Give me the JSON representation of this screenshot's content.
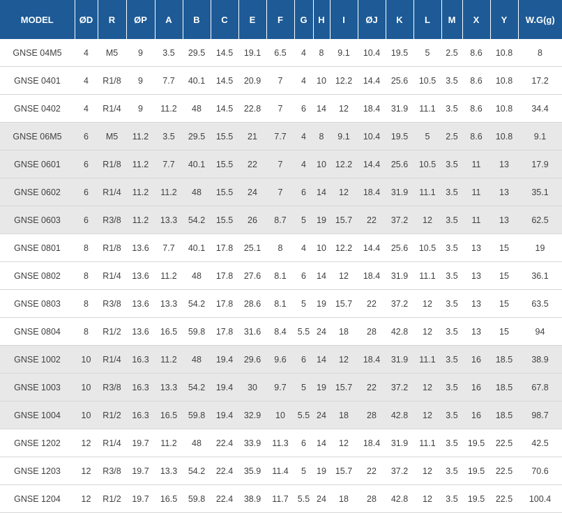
{
  "columns": [
    "MODEL",
    "ØD",
    "R",
    "ØP",
    "A",
    "B",
    "C",
    "E",
    "F",
    "G",
    "H",
    "I",
    "ØJ",
    "K",
    "L",
    "M",
    "X",
    "Y",
    "W.G(g)"
  ],
  "rows": [
    [
      "GNSE 04M5",
      "4",
      "M5",
      "9",
      "3.5",
      "29.5",
      "14.5",
      "19.1",
      "6.5",
      "4",
      "8",
      "9.1",
      "10.4",
      "19.5",
      "5",
      "2.5",
      "8.6",
      "10.8",
      "8"
    ],
    [
      "GNSE 0401",
      "4",
      "R1/8",
      "9",
      "7.7",
      "40.1",
      "14.5",
      "20.9",
      "7",
      "4",
      "10",
      "12.2",
      "14.4",
      "25.6",
      "10.5",
      "3.5",
      "8.6",
      "10.8",
      "17.2"
    ],
    [
      "GNSE 0402",
      "4",
      "R1/4",
      "9",
      "11.2",
      "48",
      "14.5",
      "22.8",
      "7",
      "6",
      "14",
      "12",
      "18.4",
      "31.9",
      "11.1",
      "3.5",
      "8.6",
      "10.8",
      "34.4"
    ],
    [
      "GNSE 06M5",
      "6",
      "M5",
      "11.2",
      "3.5",
      "29.5",
      "15.5",
      "21",
      "7.7",
      "4",
      "8",
      "9.1",
      "10.4",
      "19.5",
      "5",
      "2.5",
      "8.6",
      "10.8",
      "9.1"
    ],
    [
      "GNSE 0601",
      "6",
      "R1/8",
      "11.2",
      "7.7",
      "40.1",
      "15.5",
      "22",
      "7",
      "4",
      "10",
      "12.2",
      "14.4",
      "25.6",
      "10.5",
      "3.5",
      "11",
      "13",
      "17.9"
    ],
    [
      "GNSE 0602",
      "6",
      "R1/4",
      "11.2",
      "11.2",
      "48",
      "15.5",
      "24",
      "7",
      "6",
      "14",
      "12",
      "18.4",
      "31.9",
      "11.1",
      "3.5",
      "11",
      "13",
      "35.1"
    ],
    [
      "GNSE 0603",
      "6",
      "R3/8",
      "11.2",
      "13.3",
      "54.2",
      "15.5",
      "26",
      "8.7",
      "5",
      "19",
      "15.7",
      "22",
      "37.2",
      "12",
      "3.5",
      "11",
      "13",
      "62.5"
    ],
    [
      "GNSE 0801",
      "8",
      "R1/8",
      "13.6",
      "7.7",
      "40.1",
      "17.8",
      "25.1",
      "8",
      "4",
      "10",
      "12.2",
      "14.4",
      "25.6",
      "10.5",
      "3.5",
      "13",
      "15",
      "19"
    ],
    [
      "GNSE 0802",
      "8",
      "R1/4",
      "13.6",
      "11.2",
      "48",
      "17.8",
      "27.6",
      "8.1",
      "6",
      "14",
      "12",
      "18.4",
      "31.9",
      "11.1",
      "3.5",
      "13",
      "15",
      "36.1"
    ],
    [
      "GNSE 0803",
      "8",
      "R3/8",
      "13.6",
      "13.3",
      "54.2",
      "17.8",
      "28.6",
      "8.1",
      "5",
      "19",
      "15.7",
      "22",
      "37.2",
      "12",
      "3.5",
      "13",
      "15",
      "63.5"
    ],
    [
      "GNSE 0804",
      "8",
      "R1/2",
      "13.6",
      "16.5",
      "59.8",
      "17.8",
      "31.6",
      "8.4",
      "5.5",
      "24",
      "18",
      "28",
      "42.8",
      "12",
      "3.5",
      "13",
      "15",
      "94"
    ],
    [
      "GNSE 1002",
      "10",
      "R1/4",
      "16.3",
      "11.2",
      "48",
      "19.4",
      "29.6",
      "9.6",
      "6",
      "14",
      "12",
      "18.4",
      "31.9",
      "11.1",
      "3.5",
      "16",
      "18.5",
      "38.9"
    ],
    [
      "GNSE 1003",
      "10",
      "R3/8",
      "16.3",
      "13.3",
      "54.2",
      "19.4",
      "30",
      "9.7",
      "5",
      "19",
      "15.7",
      "22",
      "37.2",
      "12",
      "3.5",
      "16",
      "18.5",
      "67.8"
    ],
    [
      "GNSE 1004",
      "10",
      "R1/2",
      "16.3",
      "16.5",
      "59.8",
      "19.4",
      "32.9",
      "10",
      "5.5",
      "24",
      "18",
      "28",
      "42.8",
      "12",
      "3.5",
      "16",
      "18.5",
      "98.7"
    ],
    [
      "GNSE 1202",
      "12",
      "R1/4",
      "19.7",
      "11.2",
      "48",
      "22.4",
      "33.9",
      "11.3",
      "6",
      "14",
      "12",
      "18.4",
      "31.9",
      "11.1",
      "3.5",
      "19.5",
      "22.5",
      "42.5"
    ],
    [
      "GNSE 1203",
      "12",
      "R3/8",
      "19.7",
      "13.3",
      "54.2",
      "22.4",
      "35.9",
      "11.4",
      "5",
      "19",
      "15.7",
      "22",
      "37.2",
      "12",
      "3.5",
      "19.5",
      "22.5",
      "70.6"
    ],
    [
      "GNSE 1204",
      "12",
      "R1/2",
      "19.7",
      "16.5",
      "59.8",
      "22.4",
      "38.9",
      "11.7",
      "5.5",
      "24",
      "18",
      "28",
      "42.8",
      "12",
      "3.5",
      "19.5",
      "22.5",
      "100.4"
    ]
  ],
  "shaded_rows": [
    3,
    4,
    5,
    6,
    11,
    12,
    13
  ],
  "colors": {
    "header_bg": "#1d5a96",
    "header_text": "#ffffff",
    "shaded_row_bg": "#e8e8e8",
    "body_text": "#404040"
  }
}
